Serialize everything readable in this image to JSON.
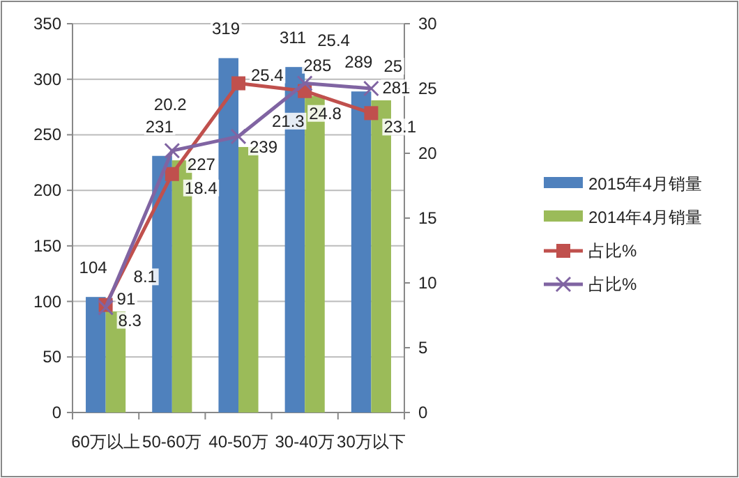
{
  "chart_data": {
    "type": "bar",
    "categories": [
      "60万以上",
      "50-60万",
      "40-50万",
      "30-40万",
      "30万以下"
    ],
    "series": [
      {
        "name": "2015年4月销量",
        "color": "#4f81bd",
        "values": [
          104,
          231,
          319,
          311,
          289
        ]
      },
      {
        "name": "2014年4月销量",
        "color": "#9bbb59",
        "values": [
          91,
          227,
          239,
          285,
          281
        ]
      },
      {
        "name": "占比%",
        "type": "line",
        "axis": "y2",
        "color": "#c0504d",
        "marker": "square",
        "values": [
          8.3,
          18.4,
          25.4,
          24.8,
          23.1
        ]
      },
      {
        "name": "占比%",
        "type": "line",
        "axis": "y2",
        "color": "#8064a2",
        "marker": "cross",
        "values": [
          8.1,
          20.2,
          21.3,
          25.4,
          25
        ]
      }
    ],
    "ylim": [
      0,
      350
    ],
    "yticks": [
      0,
      50,
      100,
      150,
      200,
      250,
      300,
      350
    ],
    "y2lim": [
      0,
      30
    ],
    "y2ticks": [
      0,
      5,
      10,
      15,
      20,
      25,
      30
    ],
    "grid": "y",
    "legend": "right",
    "data_labels": true
  }
}
